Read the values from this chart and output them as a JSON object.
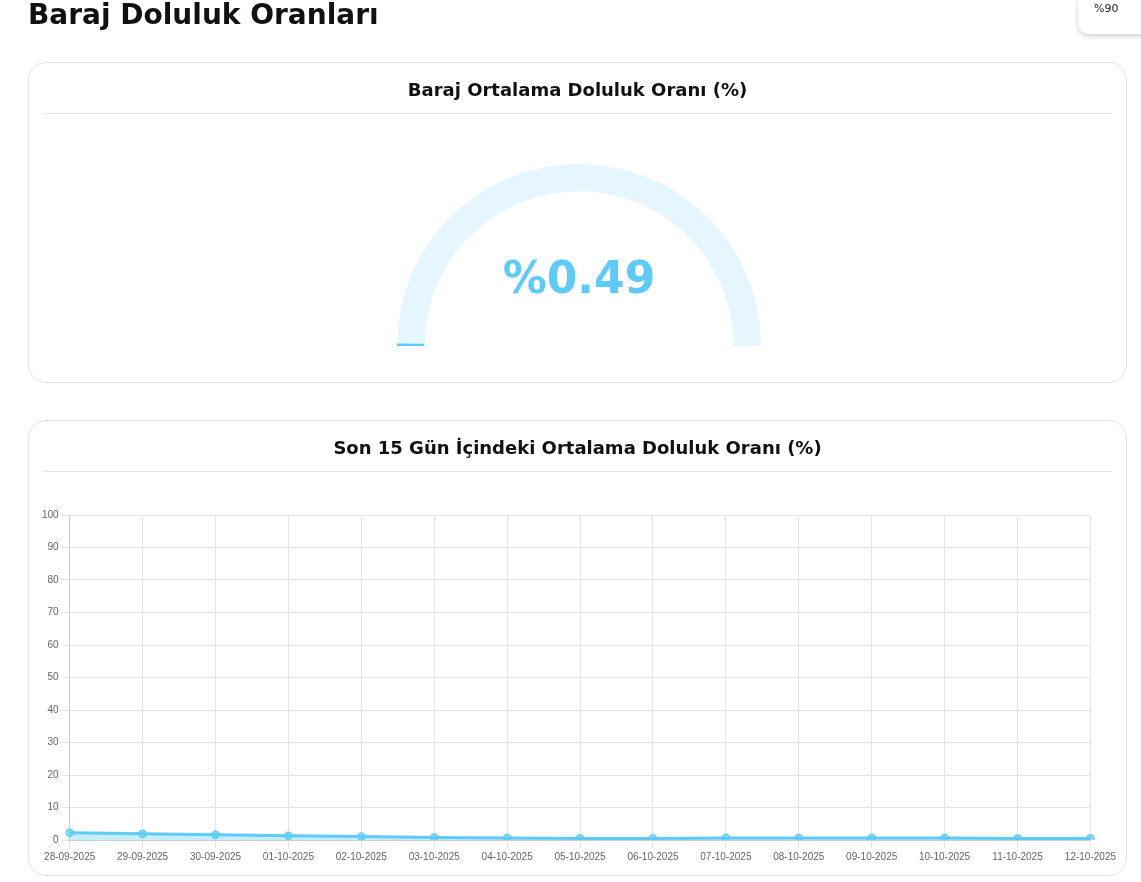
{
  "chart_data": [
    {
      "type": "other",
      "title": "Baraj Doluluk Oranları",
      "annotations": [
        "%90"
      ]
    },
    {
      "type": "donut",
      "title": "Baraj Ortalama Doluluk Oranı (%)",
      "categories": [
        null,
        null
      ],
      "values": [
        0.49,
        99.51
      ],
      "colors": [
        "#5ccbf9",
        "#e6f6fe"
      ],
      "annotations": [
        "%0.49"
      ],
      "legend": false
    },
    {
      "type": "area",
      "title": "Son 15 Gün İçindeki Ortalama Doluluk Oranı (%)",
      "categories": [
        "28-09-2025",
        "29-09-2025",
        "30-09-2025",
        "01-10-2025",
        "02-10-2025",
        "03-10-2025",
        "04-10-2025",
        "05-10-2025",
        "06-10-2025",
        "07-10-2025",
        "08-10-2025",
        "09-10-2025",
        "10-10-2025",
        "11-10-2025",
        "12-10-2025"
      ],
      "series": [
        {
          "color": "#5ccbf9",
          "values": [
            2.2,
            1.9,
            1.6,
            1.3,
            1.1,
            0.8,
            0.6,
            0.5,
            0.5,
            0.6,
            0.6,
            0.6,
            0.6,
            0.5,
            0.5
          ]
        }
      ],
      "ylim": [
        0,
        100
      ],
      "yticks": [
        0,
        10,
        20,
        30,
        40,
        50,
        60,
        70,
        80,
        90,
        100
      ],
      "grid": true,
      "marker": "circle",
      "legend": false
    }
  ]
}
